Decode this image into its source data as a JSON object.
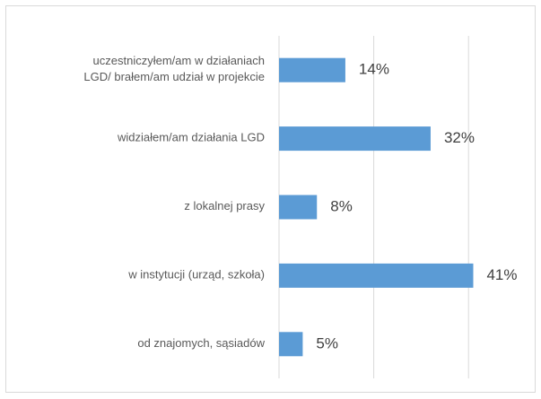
{
  "chart_data": {
    "type": "bar",
    "orientation": "horizontal",
    "categories": [
      "uczestniczyłem/am w działaniach\nLGD/ brałem/am udział w projekcie",
      "widziałem/am działania LGD",
      "z lokalnej prasy",
      "w instytucji (urząd, szkoła)",
      "od znajomych, sąsiadów"
    ],
    "values": [
      14,
      32,
      8,
      41,
      5
    ],
    "value_labels": [
      "14%",
      "32%",
      "8%",
      "41%",
      "5%"
    ],
    "color": "#5b9bd5",
    "xlim": [
      0,
      50
    ],
    "xticks": [
      0,
      20,
      40
    ],
    "grid": true
  }
}
